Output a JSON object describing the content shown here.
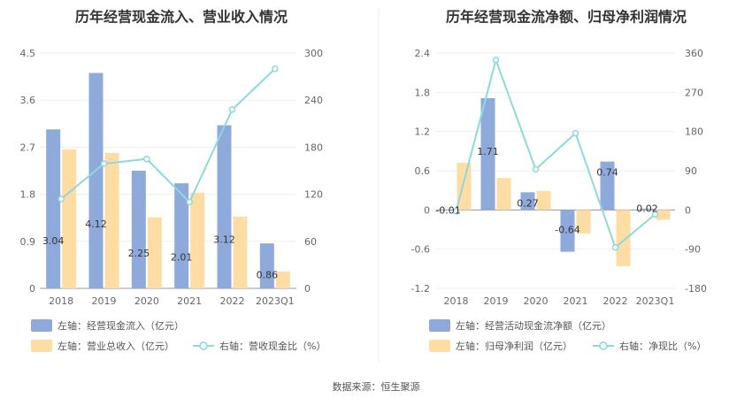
{
  "source_label": "数据来源：恒生聚源",
  "chart_data": [
    {
      "type": "bar",
      "title": "历年经营现金流入、营业收入情况",
      "categories": [
        "2018",
        "2019",
        "2020",
        "2021",
        "2022",
        "2023Q1"
      ],
      "left_ticks": [
        "0",
        "0.9",
        "1.8",
        "2.7",
        "3.6",
        "4.5"
      ],
      "right_ticks": [
        "0",
        "60",
        "120",
        "180",
        "240",
        "300"
      ],
      "ylim_left": [
        0,
        4.5
      ],
      "ylim_right": [
        0,
        300
      ],
      "series": [
        {
          "name": "左轴：经营现金流入（亿元）",
          "axis": "left",
          "kind": "bar",
          "color": "#8eaadb",
          "values": [
            3.04,
            4.12,
            2.25,
            2.01,
            3.12,
            0.86
          ],
          "labels": [
            "3.04",
            "4.12",
            "2.25",
            "2.01",
            "3.12",
            "0.86"
          ]
        },
        {
          "name": "左轴：营业总收入（亿元）",
          "axis": "left",
          "kind": "bar",
          "color": "#fddda3",
          "values": [
            2.66,
            2.59,
            1.36,
            1.83,
            1.37,
            0.32
          ]
        },
        {
          "name": "右轴：营收现金比（%）",
          "axis": "right",
          "kind": "line",
          "color": "#8fd8dc",
          "values": [
            114,
            159,
            165,
            110,
            228,
            280
          ]
        }
      ]
    },
    {
      "type": "bar",
      "title": "历年经营现金流净额、归母净利润情况",
      "categories": [
        "2018",
        "2019",
        "2020",
        "2021",
        "2022",
        "2023Q1"
      ],
      "left_ticks": [
        "-1.2",
        "-0.6",
        "0",
        "0.6",
        "1.2",
        "1.8",
        "2.4"
      ],
      "right_ticks": [
        "-180",
        "-90",
        "0",
        "90",
        "180",
        "270",
        "360"
      ],
      "ylim_left": [
        -1.2,
        2.4
      ],
      "ylim_right": [
        -180,
        360
      ],
      "series": [
        {
          "name": "左轴：经营活动现金流净额（亿元）",
          "axis": "left",
          "kind": "bar",
          "color": "#8eaadb",
          "values": [
            -0.01,
            1.71,
            0.27,
            -0.64,
            0.74,
            0.02
          ],
          "labels": [
            "-0.01",
            "1.71",
            "0.27",
            "-0.64",
            "0.74",
            "0.02"
          ]
        },
        {
          "name": "左轴：归母净利润（亿元）",
          "axis": "left",
          "kind": "bar",
          "color": "#fddda3",
          "values": [
            0.72,
            0.49,
            0.29,
            -0.36,
            -0.86,
            -0.15
          ]
        },
        {
          "name": "右轴：净现比（%）",
          "axis": "right",
          "kind": "line",
          "color": "#8fd8dc",
          "values": [
            -3,
            344,
            93,
            176,
            -86,
            -10
          ]
        }
      ]
    }
  ]
}
